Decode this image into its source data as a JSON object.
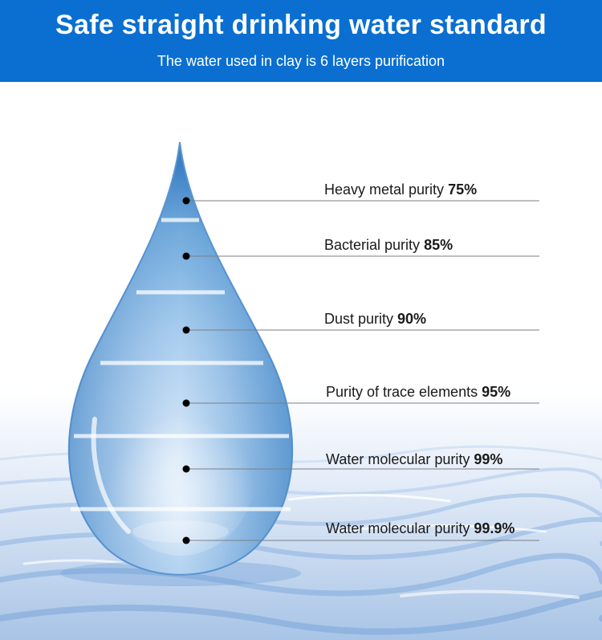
{
  "header": {
    "title": "Safe straight drinking water standard",
    "subtitle": "The water used in clay is 6 layers  purification"
  },
  "layers": [
    {
      "label": "Heavy metal purity",
      "value": "75%"
    },
    {
      "label": "Bacterial purity",
      "value": "85%"
    },
    {
      "label": "Dust purity",
      "value": "90%"
    },
    {
      "label": "Purity of trace elements",
      "value": "95%"
    },
    {
      "label": "Water molecular purity",
      "value": "99%"
    },
    {
      "label": "Water molecular purity",
      "value": "99.9%"
    }
  ],
  "colors": {
    "header_bg": "#0a6fd1",
    "drop": "#6fa9dc",
    "water": "#a9c7ea"
  }
}
